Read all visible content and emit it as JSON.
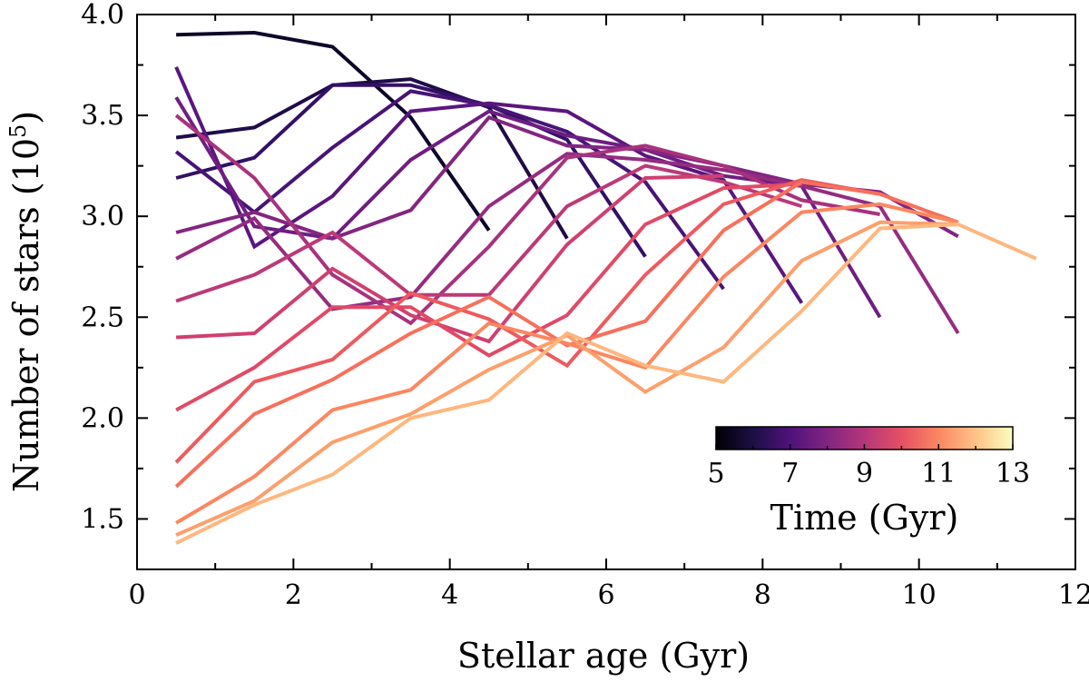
{
  "chart_data": {
    "type": "line",
    "xlabel": "Stellar age (Gyr)",
    "ylabel_prefix": "Number of stars (10",
    "ylabel_exponent": "5",
    "ylabel_suffix": ")",
    "xlim": [
      0,
      12
    ],
    "ylim": [
      1.25,
      4.0
    ],
    "xticks": [
      0,
      2,
      4,
      6,
      8,
      10,
      12
    ],
    "xtick_labels": [
      "0",
      "2",
      "4",
      "6",
      "8",
      "10",
      "12"
    ],
    "yticks": [
      1.5,
      2.0,
      2.5,
      3.0,
      3.5,
      4.0
    ],
    "ytick_labels": [
      "1.5",
      "2.0",
      "2.5",
      "3.0",
      "3.5",
      "4.0"
    ],
    "grid": false,
    "colorbar": {
      "label": "Time (Gyr)",
      "range": [
        5,
        13
      ],
      "ticks": [
        5,
        7,
        9,
        11,
        13
      ],
      "tick_labels": [
        "5",
        "7",
        "9",
        "11",
        "13"
      ],
      "colormap": "magma",
      "placement": "lower-right"
    },
    "series": [
      {
        "color": "#0d0829",
        "x": [
          0.5,
          1.5,
          2.5,
          3.5,
          4.5
        ],
        "y": [
          3.9,
          3.91,
          3.84,
          3.49,
          2.93
        ]
      },
      {
        "color": "#1f0c48",
        "x": [
          0.5,
          1.5,
          2.5,
          3.5,
          4.5,
          5.5
        ],
        "y": [
          3.39,
          3.44,
          3.65,
          3.68,
          3.54,
          2.89
        ]
      },
      {
        "color": "#331067",
        "x": [
          0.5,
          1.5,
          2.5,
          3.5,
          4.5,
          5.5,
          6.5
        ],
        "y": [
          3.19,
          3.29,
          3.65,
          3.65,
          3.55,
          3.38,
          2.8
        ]
      },
      {
        "color": "#471477",
        "x": [
          0.5,
          1.5,
          2.5,
          3.5,
          4.5,
          5.5,
          6.5,
          7.5
        ],
        "y": [
          3.32,
          3.02,
          3.34,
          3.62,
          3.55,
          3.42,
          3.17,
          2.64
        ]
      },
      {
        "color": "#5a167e",
        "x": [
          0.5,
          1.5,
          2.5,
          3.5,
          4.5,
          5.5,
          6.5,
          7.5,
          8.5
        ],
        "y": [
          3.74,
          2.85,
          3.1,
          3.52,
          3.56,
          3.52,
          3.3,
          3.18,
          2.57
        ]
      },
      {
        "color": "#6e1e81",
        "x": [
          0.5,
          1.5,
          2.5,
          3.5,
          4.5,
          5.5,
          6.5,
          7.5,
          8.5,
          9.5
        ],
        "y": [
          3.59,
          2.95,
          2.89,
          3.28,
          3.52,
          3.4,
          3.33,
          3.2,
          3.15,
          2.5
        ]
      },
      {
        "color": "#822681",
        "x": [
          0.5,
          1.5,
          2.5,
          3.5,
          4.5,
          5.5,
          6.5,
          7.5,
          8.5,
          9.5,
          10.5
        ],
        "y": [
          2.92,
          3.02,
          2.89,
          3.03,
          3.49,
          3.35,
          3.33,
          3.25,
          3.16,
          3.12,
          2.9
        ]
      },
      {
        "color": "#952c80",
        "x": [
          0.5,
          1.5,
          2.5,
          3.5,
          4.5,
          5.5,
          6.5,
          7.5,
          8.5,
          9.5,
          10.5
        ],
        "y": [
          2.79,
          2.99,
          2.54,
          2.6,
          3.05,
          3.31,
          3.28,
          3.23,
          3.15,
          3.05,
          2.42
        ]
      },
      {
        "color": "#a8327d",
        "x": [
          0.5,
          1.5,
          2.5,
          3.5,
          4.5,
          5.5,
          6.5,
          7.5,
          8.5,
          9.5
        ],
        "y": [
          3.5,
          3.19,
          2.71,
          2.47,
          2.85,
          3.29,
          3.35,
          3.25,
          3.08,
          3.01
        ]
      },
      {
        "color": "#bc3978",
        "x": [
          0.5,
          1.5,
          2.5,
          3.5,
          4.5,
          5.5,
          6.5,
          7.5,
          8.5
        ],
        "y": [
          2.58,
          2.71,
          2.92,
          2.61,
          2.61,
          3.05,
          3.25,
          3.17,
          3.05
        ]
      },
      {
        "color": "#cf4070",
        "x": [
          0.5,
          1.5,
          2.5,
          3.5,
          4.5,
          5.5,
          6.5,
          7.5
        ],
        "y": [
          2.4,
          2.42,
          2.74,
          2.51,
          2.38,
          2.86,
          3.19,
          3.2
        ]
      },
      {
        "color": "#e04a66",
        "x": [
          0.5,
          1.5,
          2.5,
          3.5,
          4.5,
          5.5,
          6.5,
          7.5,
          8.5
        ],
        "y": [
          2.04,
          2.25,
          2.55,
          2.55,
          2.31,
          2.51,
          2.96,
          3.14,
          3.16
        ]
      },
      {
        "color": "#ed5a5f",
        "x": [
          0.5,
          1.5,
          2.5,
          3.5,
          4.5,
          5.5,
          6.5,
          7.5,
          8.5,
          9.5
        ],
        "y": [
          1.78,
          2.18,
          2.29,
          2.62,
          2.49,
          2.26,
          2.71,
          3.06,
          3.18,
          3.11
        ]
      },
      {
        "color": "#f6705c",
        "x": [
          0.5,
          1.5,
          2.5,
          3.5,
          4.5,
          5.5,
          6.5,
          7.5,
          8.5,
          9.5,
          10.5
        ],
        "y": [
          1.66,
          2.02,
          2.19,
          2.42,
          2.6,
          2.36,
          2.48,
          2.93,
          3.17,
          3.11,
          2.97
        ]
      },
      {
        "color": "#fb8761",
        "x": [
          0.5,
          1.5,
          2.5,
          3.5,
          4.5,
          5.5,
          6.5,
          7.5,
          8.5,
          9.5,
          10.5
        ],
        "y": [
          1.48,
          1.71,
          2.04,
          2.14,
          2.47,
          2.37,
          2.25,
          2.7,
          3.02,
          3.06,
          2.97
        ]
      },
      {
        "color": "#fd9f6c",
        "x": [
          0.5,
          1.5,
          2.5,
          3.5,
          4.5,
          5.5,
          6.5,
          7.5,
          8.5,
          9.5,
          10.5
        ],
        "y": [
          1.42,
          1.59,
          1.88,
          2.02,
          2.24,
          2.41,
          2.13,
          2.35,
          2.78,
          2.97,
          2.96
        ]
      },
      {
        "color": "#feb77e",
        "x": [
          0.5,
          1.5,
          2.5,
          3.5,
          4.5,
          5.5,
          6.5,
          7.5,
          8.5,
          9.5,
          10.5,
          11.5
        ],
        "y": [
          1.38,
          1.57,
          1.72,
          2.0,
          2.09,
          2.42,
          2.26,
          2.18,
          2.53,
          2.94,
          2.96,
          2.79
        ]
      }
    ]
  }
}
